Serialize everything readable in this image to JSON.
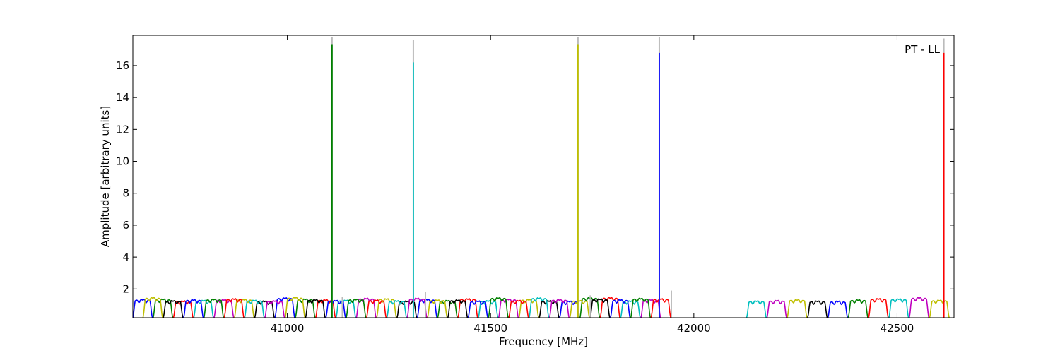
{
  "chart_data": {
    "type": "line",
    "title": "",
    "annotation": "PT - LL",
    "xlabel": "Frequency [MHz]",
    "ylabel": "Amplitude [arbitrary units]",
    "xlim": [
      40620,
      42640
    ],
    "ylim": [
      0.2,
      17.9
    ],
    "xticks": [
      41000,
      41500,
      42000,
      42500
    ],
    "yticks": [
      2,
      4,
      6,
      8,
      10,
      12,
      14,
      16
    ],
    "grid": false,
    "legend": "none",
    "colors": [
      "#0000ff",
      "#008000",
      "#ff0000",
      "#00bfbf",
      "#bf00bf",
      "#bfbf00",
      "#000000"
    ],
    "background_trace_color": "#bbbbbb",
    "channel_width_mhz": 48,
    "channel_spacing_mhz": 50,
    "ripple": {
      "typical_peak": 1.3,
      "typical_trough": 0.2
    },
    "bands": [
      {
        "start": 40620,
        "end": 41950,
        "note": "dense overlapping channels"
      },
      {
        "start": 42130,
        "end": 42640,
        "note": "upper channel group"
      }
    ],
    "spikes": [
      {
        "x": 41110,
        "peak": 17.3,
        "background_peak": 17.8,
        "color": "#008000"
      },
      {
        "x": 41310,
        "peak": 16.2,
        "background_peak": 17.6,
        "color": "#00bfbf"
      },
      {
        "x": 41715,
        "peak": 17.3,
        "background_peak": 17.8,
        "color": "#bfbf00"
      },
      {
        "x": 41915,
        "peak": 16.8,
        "background_peak": 17.8,
        "color": "#0000ff"
      },
      {
        "x": 42615,
        "peak": 16.8,
        "background_peak": 17.7,
        "color": "#ff0000"
      }
    ],
    "minor_spikes": [
      {
        "x": 41340,
        "peak": 1.8
      },
      {
        "x": 41745,
        "peak": 1.6
      },
      {
        "x": 41945,
        "peak": 1.9
      },
      {
        "x": 41135,
        "peak": 1.5
      }
    ]
  }
}
